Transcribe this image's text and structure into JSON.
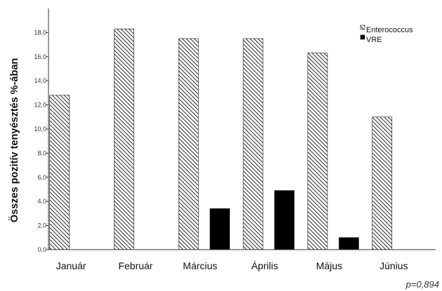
{
  "chart_data": {
    "type": "bar",
    "categories": [
      "Január",
      "Február",
      "Március",
      "Április",
      "Május",
      "Június"
    ],
    "series": [
      {
        "name": "Enterococcus",
        "values": [
          12.8,
          18.3,
          17.5,
          17.5,
          16.3,
          11.0
        ],
        "fill": "hatched"
      },
      {
        "name": "VRE",
        "values": [
          null,
          null,
          3.4,
          4.9,
          1.0,
          null
        ],
        "fill": "#000000"
      }
    ],
    "ylabel": "Összes pozitív tenyésztés %-ában",
    "xlabel": "",
    "ylim": [
      0,
      20
    ],
    "yticks": [
      "0,0",
      "2,0",
      "4,0",
      "6,0",
      "8,0",
      "10,0",
      "12,0",
      "14,0",
      "16,0",
      "18,0"
    ],
    "grid": false,
    "legend": "top-right",
    "annotation": "p=0,894"
  }
}
